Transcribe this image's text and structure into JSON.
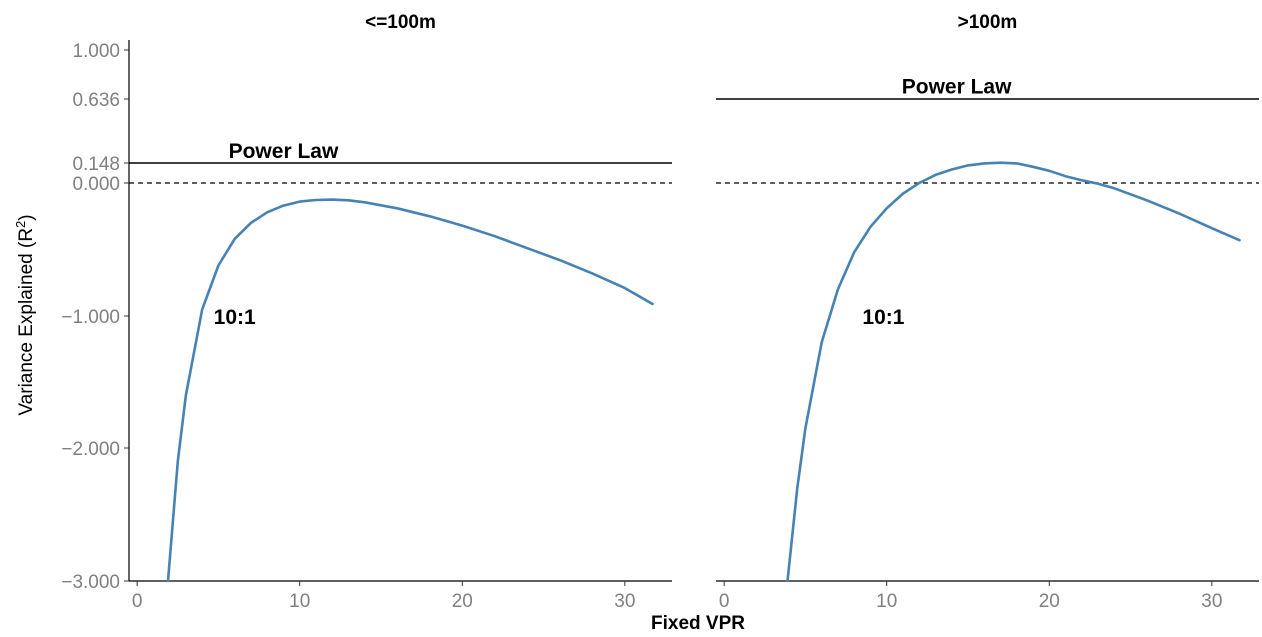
{
  "chart_data": {
    "type": "line",
    "xlabel": "Fixed VPR",
    "ylabel": "Variance Explained (R",
    "ylabel_sup": "2",
    "ylabel_close": ")",
    "yticks": [
      {
        "value": -3,
        "label": "−3.000"
      },
      {
        "value": -2,
        "label": "−2.000"
      },
      {
        "value": -1,
        "label": "−1.000"
      },
      {
        "value": 0,
        "label": "0.000"
      },
      {
        "value": 0.148,
        "label": "0.148"
      },
      {
        "value": 0.636,
        "label": "0.636"
      },
      {
        "value": 1,
        "label": "1.000"
      }
    ],
    "xticks": [
      {
        "value": 0,
        "label": "0"
      },
      {
        "value": 10,
        "label": "10"
      },
      {
        "value": 20,
        "label": "20"
      },
      {
        "value": 30,
        "label": "30"
      }
    ],
    "xlim": [
      -0.5,
      32.9
    ],
    "ylim": [
      -3,
      1.03
    ],
    "line_color": "#4682B4",
    "panels": [
      {
        "title": "<=100m",
        "power_law_value": 0.148,
        "power_law_label": "Power Law",
        "series_label": "10:1",
        "series_label_pos": [
          6.0,
          -1.0
        ],
        "power_label_pos": [
          9.0,
          0.23
        ],
        "series": [
          {
            "x": 1.9,
            "y": -3.0
          },
          {
            "x": 2.5,
            "y": -2.1
          },
          {
            "x": 3.0,
            "y": -1.6
          },
          {
            "x": 4.0,
            "y": -0.95
          },
          {
            "x": 5.0,
            "y": -0.62
          },
          {
            "x": 6.0,
            "y": -0.42
          },
          {
            "x": 7.0,
            "y": -0.3
          },
          {
            "x": 8.0,
            "y": -0.22
          },
          {
            "x": 9.0,
            "y": -0.17
          },
          {
            "x": 10.0,
            "y": -0.14
          },
          {
            "x": 11.0,
            "y": -0.128
          },
          {
            "x": 12.0,
            "y": -0.125
          },
          {
            "x": 13.0,
            "y": -0.13
          },
          {
            "x": 14.0,
            "y": -0.145
          },
          {
            "x": 16.0,
            "y": -0.19
          },
          {
            "x": 18.0,
            "y": -0.25
          },
          {
            "x": 20.0,
            "y": -0.32
          },
          {
            "x": 22.0,
            "y": -0.4
          },
          {
            "x": 24.0,
            "y": -0.49
          },
          {
            "x": 26.0,
            "y": -0.58
          },
          {
            "x": 28.0,
            "y": -0.68
          },
          {
            "x": 30.0,
            "y": -0.79
          },
          {
            "x": 31.7,
            "y": -0.91
          }
        ]
      },
      {
        "title": ">100m",
        "power_law_value": 0.636,
        "power_law_label": "Power Law",
        "series_label": "10:1",
        "series_label_pos": [
          9.8,
          -1.0
        ],
        "power_label_pos": [
          14.3,
          0.72
        ],
        "series": [
          {
            "x": 3.9,
            "y": -3.0
          },
          {
            "x": 4.5,
            "y": -2.3
          },
          {
            "x": 5.0,
            "y": -1.85
          },
          {
            "x": 6.0,
            "y": -1.2
          },
          {
            "x": 7.0,
            "y": -0.8
          },
          {
            "x": 8.0,
            "y": -0.52
          },
          {
            "x": 9.0,
            "y": -0.33
          },
          {
            "x": 10.0,
            "y": -0.19
          },
          {
            "x": 11.0,
            "y": -0.08
          },
          {
            "x": 12.0,
            "y": 0.0
          },
          {
            "x": 13.0,
            "y": 0.06
          },
          {
            "x": 14.0,
            "y": 0.1
          },
          {
            "x": 15.0,
            "y": 0.13
          },
          {
            "x": 16.0,
            "y": 0.145
          },
          {
            "x": 17.0,
            "y": 0.15
          },
          {
            "x": 18.0,
            "y": 0.145
          },
          {
            "x": 19.0,
            "y": 0.12
          },
          {
            "x": 20.0,
            "y": 0.09
          },
          {
            "x": 21.0,
            "y": 0.05
          },
          {
            "x": 22.0,
            "y": 0.02
          },
          {
            "x": 23.0,
            "y": -0.005
          },
          {
            "x": 24.0,
            "y": -0.04
          },
          {
            "x": 26.0,
            "y": -0.13
          },
          {
            "x": 28.0,
            "y": -0.23
          },
          {
            "x": 30.0,
            "y": -0.34
          },
          {
            "x": 31.7,
            "y": -0.43
          }
        ]
      }
    ]
  }
}
